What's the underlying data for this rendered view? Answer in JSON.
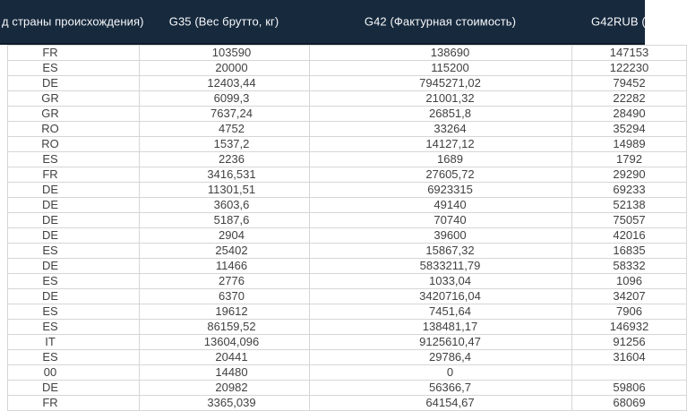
{
  "colors": {
    "header_bg": "#17293d",
    "header_border": "#0d1b2a",
    "grid_line": "#d6d6d6",
    "cell_text": "#414141",
    "header_text": "#f7f9fb"
  },
  "table": {
    "columns": [
      {
        "id": "country-of-origin-code",
        "label": "д страны происхождения)"
      },
      {
        "id": "gross-weight-kg",
        "label": "G35 (Вес брутто, кг)"
      },
      {
        "id": "invoice-value",
        "label": "G42 (Фактурная стоимость)"
      },
      {
        "id": "invoice-value-rub",
        "label": "G42RUB ("
      }
    ],
    "rows": [
      [
        "FR",
        "103590",
        "138690",
        "147153"
      ],
      [
        "ES",
        "20000",
        "115200",
        "122230"
      ],
      [
        "DE",
        "12403,44",
        "7945271,02",
        "79452"
      ],
      [
        "GR",
        "6099,3",
        "21001,32",
        "22282"
      ],
      [
        "GR",
        "7637,24",
        "26851,8",
        "28490"
      ],
      [
        "RO",
        "4752",
        "33264",
        "35294"
      ],
      [
        "RO",
        "1537,2",
        "14127,12",
        "14989"
      ],
      [
        "ES",
        "2236",
        "1689",
        "1792"
      ],
      [
        "FR",
        "3416,531",
        "27605,72",
        "29290"
      ],
      [
        "DE",
        "11301,51",
        "6923315",
        "69233"
      ],
      [
        "DE",
        "3603,6",
        "49140",
        "52138"
      ],
      [
        "DE",
        "5187,6",
        "70740",
        "75057"
      ],
      [
        "DE",
        "2904",
        "39600",
        "42016"
      ],
      [
        "ES",
        "25402",
        "15867,32",
        "16835"
      ],
      [
        "DE",
        "11466",
        "5833211,79",
        "58332"
      ],
      [
        "ES",
        "2776",
        "1033,04",
        "1096"
      ],
      [
        "DE",
        "6370",
        "3420716,04",
        "34207"
      ],
      [
        "ES",
        "19612",
        "7451,64",
        "7906"
      ],
      [
        "ES",
        "86159,52",
        "138481,17",
        "146932"
      ],
      [
        "IT",
        "13604,096",
        "9125610,47",
        "91256"
      ],
      [
        "ES",
        "20441",
        "29786,4",
        "31604"
      ],
      [
        "00",
        "14480",
        "0",
        ""
      ],
      [
        "DE",
        "20982",
        "56366,7",
        "59806"
      ],
      [
        "FR",
        "3365,039",
        "64154,67",
        "68069"
      ]
    ]
  }
}
